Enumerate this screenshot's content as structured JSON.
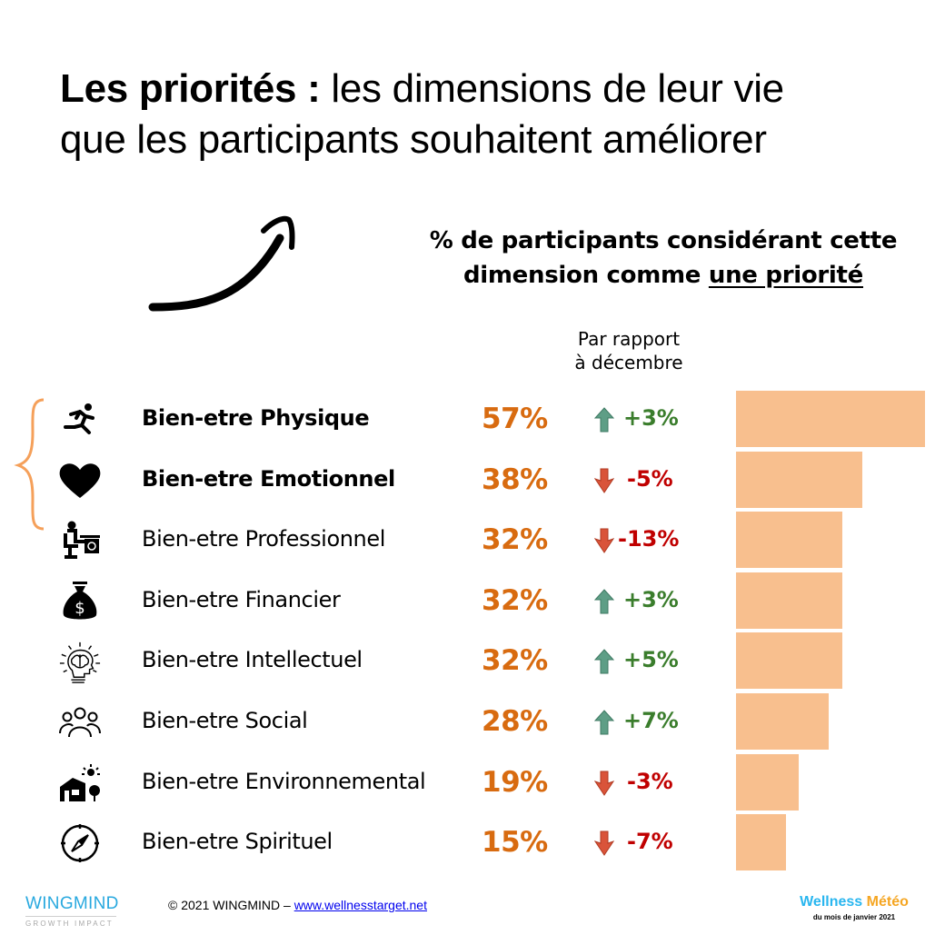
{
  "title": {
    "bold": "Les priorités :",
    "rest_line1": " les dimensions de leur vie",
    "line2": "que les participants souhaitent améliorer"
  },
  "subtitle": {
    "line1": "% de participants considérant cette",
    "line2_prefix": "dimension comme ",
    "line2_underlined": "une priorité"
  },
  "column_header": {
    "line1": "Par rapport",
    "line2": "à décembre"
  },
  "colors": {
    "percent": "#d86b10",
    "bar": "#f8bf8e",
    "up": "#3a7d2c",
    "up_arrow": "#5e9e86",
    "down": "#c00000",
    "down_arrow": "#d9543a",
    "brace": "#f5a05a"
  },
  "chart_data": {
    "type": "bar",
    "orientation": "horizontal",
    "title": "% de participants considérant cette dimension comme une priorité",
    "xlabel": "",
    "ylabel": "",
    "xlim": [
      0,
      57
    ],
    "grid": false,
    "categories": [
      "Bien-etre Physique",
      "Bien-etre Emotionnel",
      "Bien-etre Professionnel",
      "Bien-etre Financier",
      "Bien-etre Intellectuel",
      "Bien-etre Social",
      "Bien-etre Environnemental",
      "Bien-etre Spirituel"
    ],
    "values": [
      57,
      38,
      32,
      32,
      32,
      28,
      19,
      15
    ],
    "value_labels": [
      "57%",
      "38%",
      "32%",
      "32%",
      "32%",
      "28%",
      "19%",
      "15%"
    ],
    "change_vs_december": [
      3,
      -5,
      -13,
      3,
      5,
      7,
      -3,
      -7
    ],
    "change_labels": [
      "+3%",
      "-5%",
      "-13%",
      "+3%",
      "+5%",
      "+7%",
      "-3%",
      "-7%"
    ],
    "highlighted": [
      "Bien-etre Physique",
      "Bien-etre Emotionnel"
    ]
  },
  "rows": [
    {
      "icon": "running-person-icon",
      "label": "Bien-etre Physique",
      "bold": true
    },
    {
      "icon": "heart-icon",
      "label": "Bien-etre Emotionnel",
      "bold": true
    },
    {
      "icon": "desk-worker-icon",
      "label": "Bien-etre Professionnel",
      "bold": false
    },
    {
      "icon": "money-bag-icon",
      "label": "Bien-etre Financier",
      "bold": false
    },
    {
      "icon": "brain-head-icon",
      "label": "Bien-etre Intellectuel",
      "bold": false
    },
    {
      "icon": "people-group-icon",
      "label": "Bien-etre Social",
      "bold": false
    },
    {
      "icon": "house-sun-tree-icon",
      "label": "Bien-etre Environnemental",
      "bold": false
    },
    {
      "icon": "compass-icon",
      "label": "Bien-etre Spirituel",
      "bold": false
    }
  ],
  "footer": {
    "logo_brand": "WINGMIND",
    "logo_tagline": "GROWTH IMPACT",
    "copyright": "© 2021 WINGMIND  – ",
    "link": "www.wellnesstarget.net",
    "meteo_word1": "Wellness",
    "meteo_word2": "Météo",
    "meteo_sub": "du mois de janvier 2021"
  }
}
